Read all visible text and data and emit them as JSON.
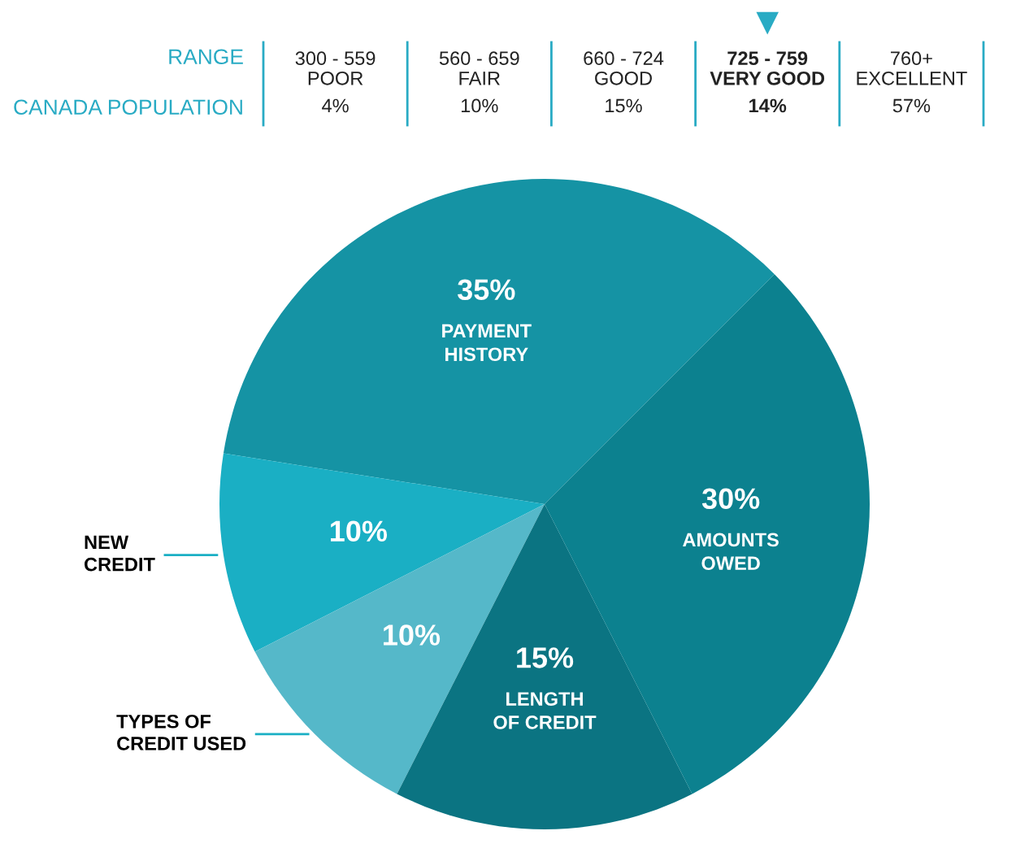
{
  "chart_data": [
    {
      "type": "other",
      "categories": [
        "300 - 559\nPOOR",
        "560 - 659\nFAIR",
        "660 - 724\nGOOD",
        "725 - 759\nVERY GOOD",
        "760+\nEXCELLENT"
      ],
      "values": [
        4,
        10,
        15,
        14,
        57
      ],
      "value_labels": [
        "4%",
        "10%",
        "15%",
        "14%",
        "57%"
      ],
      "annotations": [
        "RANGE",
        "CANADA POPULATION",
        {
          "text": "▼",
          "x": "725 - 759\nVERY GOOD"
        }
      ],
      "color": "#29abc4"
    },
    {
      "type": "pie",
      "categories": [
        "PAYMENT\nHISTORY",
        "NEW\nCREDIT",
        "TYPES OF\nCREDIT USED",
        "LENGTH\nOF CREDIT",
        "AMOUNTS\nOWED"
      ],
      "values": [
        35,
        10,
        10,
        15,
        30
      ],
      "value_labels": [
        "35%",
        "10%",
        "10%",
        "15%",
        "30%"
      ],
      "colors": [
        "#1593a4",
        "#1aafc4",
        "#55b8c9",
        "#0b7482",
        "#0c818f"
      ]
    }
  ]
}
